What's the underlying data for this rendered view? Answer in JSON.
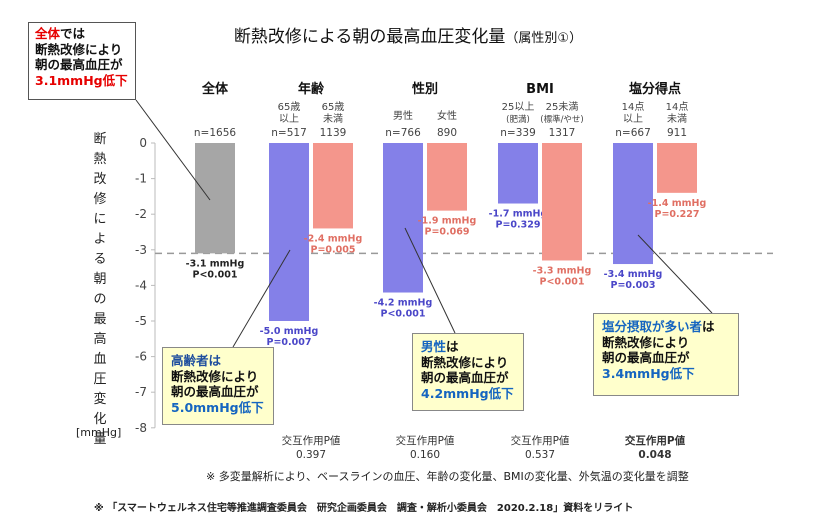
{
  "title": "断熱改修による朝の最高血圧変化量",
  "title_sub": "（属性別①）",
  "y_axis_label_chars": [
    "断",
    "熱",
    "改",
    "修",
    "に",
    "よ",
    "る",
    "朝",
    "の",
    "最",
    "高",
    "血",
    "圧",
    "変",
    "化",
    "量"
  ],
  "y_axis_unit": "[mmHg]",
  "note": "※ 多変量解析により、ベースラインの血圧、年齢の変化量、BMIの変化量、外気温の変化量を調整",
  "source": "※ 「スマートウェルネス住宅等推進調査委員会　研究企画委員会　調査・解析小委員会　2020.2.18」資料をリライト",
  "callouts": {
    "overall": {
      "line1_red": "全体",
      "line1_rest": "では",
      "line2": "断熱改修により",
      "line3": "朝の最高血圧が",
      "line4": "3.1mmHg低下"
    },
    "elderly": {
      "line1": "高齢者は",
      "line2": "断熱改修により",
      "line3": "朝の最高血圧が",
      "line4": "5.0mmHg低下"
    },
    "male": {
      "line1_hl": "男性",
      "line1_rest": "は",
      "line2": "断熱改修により",
      "line3": "朝の最高血圧が",
      "line4": "4.2mmHg低下"
    },
    "salt": {
      "line1_hl": "塩分摂取が多い者",
      "line1_rest": "は",
      "line2": "断熱改修により",
      "line3": "朝の最高血圧が",
      "line4": "3.4mmHg低下"
    }
  },
  "colors": {
    "gray": "#a6a6a6",
    "blue": "#8480e8",
    "salmon": "#f4968c",
    "red_text": "#e60000",
    "blue_text": "#1565c0"
  },
  "chart_data": {
    "type": "bar",
    "ylim": [
      -8,
      0
    ],
    "yticks": [
      0,
      -1,
      -2,
      -3,
      -4,
      -5,
      -6,
      -7,
      -8
    ],
    "reference_line": -3.1,
    "groups": [
      {
        "label": "全体",
        "interaction_label": "",
        "interaction_p": "",
        "interaction_bold": false,
        "bars": [
          {
            "sub": [],
            "n": "n=1656",
            "value": -3.1,
            "color": "gray",
            "val_label": "-3.1 mmHg",
            "p_label": "P<0.001"
          }
        ]
      },
      {
        "label": "年齢",
        "interaction_label": "交互作用P値",
        "interaction_p": "0.397",
        "interaction_bold": false,
        "bars": [
          {
            "sub": [
              "65歳",
              "以上"
            ],
            "n": "n=517",
            "value": -5.0,
            "color": "blue",
            "val_label": "-5.0 mmHg",
            "p_label": "P=0.007"
          },
          {
            "sub": [
              "65歳",
              "未満"
            ],
            "n": "1139",
            "value": -2.4,
            "color": "salmon",
            "val_label": "-2.4 mmHg",
            "p_label": "P=0.005"
          }
        ]
      },
      {
        "label": "性別",
        "interaction_label": "交互作用P値",
        "interaction_p": "0.160",
        "interaction_bold": false,
        "bars": [
          {
            "sub": [
              "男性"
            ],
            "n": "n=766",
            "value": -4.2,
            "color": "blue",
            "val_label": "-4.2 mmHg",
            "p_label": "P<0.001"
          },
          {
            "sub": [
              "女性"
            ],
            "n": "890",
            "value": -1.9,
            "color": "salmon",
            "val_label": "-1.9 mmHg",
            "p_label": "P=0.069"
          }
        ]
      },
      {
        "label": "BMI",
        "interaction_label": "交互作用P値",
        "interaction_p": "0.537",
        "interaction_bold": false,
        "bars": [
          {
            "sub": [
              "25以上",
              "(肥満)"
            ],
            "n": "n=339",
            "value": -1.7,
            "color": "blue",
            "val_label": "-1.7 mmHg",
            "p_label": "P=0.329"
          },
          {
            "sub": [
              "25未満",
              "(標準/やせ)"
            ],
            "n": "1317",
            "value": -3.3,
            "color": "salmon",
            "val_label": "-3.3 mmHg",
            "p_label": "P<0.001"
          }
        ]
      },
      {
        "label": "塩分得点",
        "interaction_label": "交互作用P値",
        "interaction_p": "0.048",
        "interaction_bold": true,
        "bars": [
          {
            "sub": [
              "14点",
              "以上"
            ],
            "n": "n=667",
            "value": -3.4,
            "color": "blue",
            "val_label": "-3.4 mmHg",
            "p_label": "P=0.003"
          },
          {
            "sub": [
              "14点",
              "未満"
            ],
            "n": "911",
            "value": -1.4,
            "color": "salmon",
            "val_label": "-1.4 mmHg",
            "p_label": "P=0.227"
          }
        ]
      }
    ]
  }
}
